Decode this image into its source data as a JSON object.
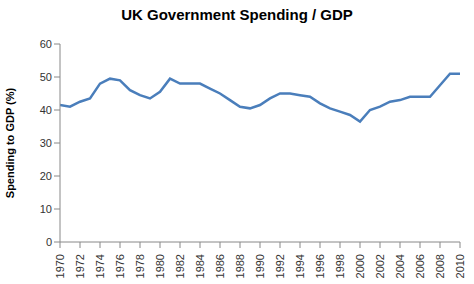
{
  "chart_data": {
    "type": "line",
    "title": "UK Government Spending / GDP",
    "y_label": "Spending to GDP (%)",
    "x": [
      1970,
      1971,
      1972,
      1973,
      1974,
      1975,
      1976,
      1977,
      1978,
      1979,
      1980,
      1981,
      1982,
      1983,
      1984,
      1985,
      1986,
      1987,
      1988,
      1989,
      1990,
      1991,
      1992,
      1993,
      1994,
      1995,
      1996,
      1997,
      1998,
      1999,
      2000,
      2001,
      2002,
      2003,
      2004,
      2005,
      2006,
      2007,
      2008,
      2009,
      2010
    ],
    "values": [
      41.5,
      41,
      42.5,
      43.5,
      48,
      49.5,
      49,
      46,
      44.5,
      43.5,
      45.5,
      49.5,
      48,
      48,
      48,
      46.5,
      45,
      43,
      41,
      40.5,
      41.5,
      43.5,
      45,
      45,
      44.5,
      44,
      42,
      40.5,
      39.5,
      38.5,
      36.5,
      40,
      41,
      42.5,
      43,
      44,
      44,
      44,
      47.5,
      51,
      51
    ],
    "color": "#4a7ebb",
    "xlim": [
      1970,
      2010
    ],
    "xticks": [
      1970,
      1972,
      1974,
      1976,
      1978,
      1980,
      1982,
      1984,
      1986,
      1988,
      1990,
      1992,
      1994,
      1996,
      1998,
      2000,
      2002,
      2004,
      2006,
      2008,
      2010
    ],
    "ylim": [
      0,
      60
    ],
    "yticks": [
      0,
      10,
      20,
      30,
      40,
      50,
      60
    ],
    "grid": false
  }
}
